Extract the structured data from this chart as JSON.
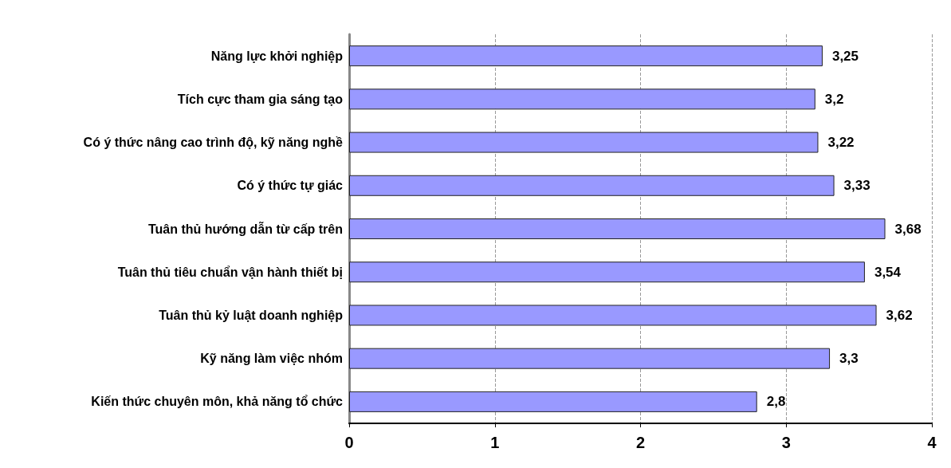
{
  "chart_data": {
    "type": "bar",
    "orientation": "horizontal",
    "categories": [
      "Năng lực khởi nghiệp",
      "Tích cực tham gia sáng tạo",
      "Có ý thức nâng cao trình độ, kỹ năng nghề",
      "Có ý thức tự giác",
      "Tuân thủ hướng dẫn từ cấp trên",
      "Tuân thủ tiêu chuẩn vận hành thiết bị",
      "Tuân thủ kỷ luật doanh nghiệp",
      "Kỹ năng làm việc nhóm",
      "Kiến thức chuyên môn, khả năng tổ chức"
    ],
    "values": [
      3.25,
      3.2,
      3.22,
      3.33,
      3.68,
      3.54,
      3.62,
      3.3,
      2.8
    ],
    "value_labels": [
      "3,25",
      "3,2",
      "3,22",
      "3,33",
      "3,68",
      "3,54",
      "3,62",
      "3,3",
      "2,8"
    ],
    "color": "#9999ff",
    "xlim": [
      0,
      4
    ],
    "xticks": [
      0,
      1,
      2,
      3,
      4
    ],
    "grid": "x"
  }
}
